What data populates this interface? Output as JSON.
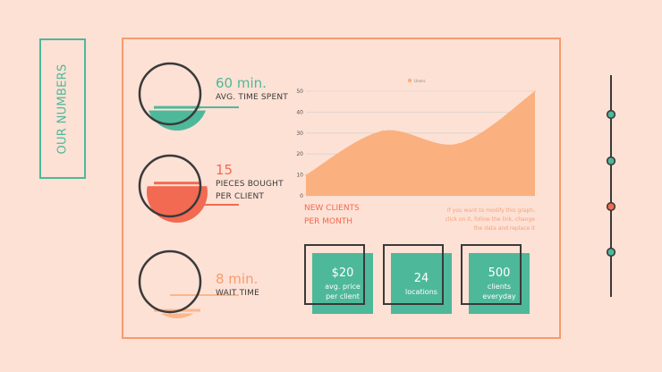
{
  "title": "OUR NUMBERS",
  "colors": {
    "background": "#fde1d5",
    "green": "#4eb89a",
    "coral": "#f26a52",
    "orange": "#f79b6d",
    "peach": "#fab78e",
    "dark": "#3a3a3a"
  },
  "stats": [
    {
      "value": "60 min.",
      "label_lines": [
        "AVG. TIME SPENT"
      ],
      "color": "#4eb89a",
      "fill_fraction": 0.33
    },
    {
      "value": "15",
      "label_lines": [
        "PIECES BOUGHT",
        "PER CLIENT"
      ],
      "color": "#f26a52",
      "fill_fraction": 0.6
    },
    {
      "value": "8 min.",
      "label_lines": [
        "WAIT TIME"
      ],
      "color": "#fab78e",
      "fill_fraction": 0.08
    }
  ],
  "chart_data": {
    "type": "area",
    "series": [
      {
        "name": "Users",
        "values": [
          10,
          31,
          25,
          50
        ]
      }
    ],
    "x": [
      0,
      1,
      2,
      3
    ],
    "ylim": [
      0,
      50
    ],
    "yticks": [
      0,
      10,
      20,
      30,
      40,
      50
    ],
    "grid": true,
    "legend": "top-center",
    "color": "#fab07f"
  },
  "chart_caption": [
    "NEW CLIENTS",
    "PER MONTH"
  ],
  "chart_note": [
    "If you want to modify this graph,",
    "click on it, follow the link, change",
    "the data and replace it"
  ],
  "cards": [
    {
      "number": "$20",
      "lines": [
        "avg. price",
        "per client"
      ]
    },
    {
      "number": "24",
      "lines": [
        "locations"
      ]
    },
    {
      "number": "500",
      "lines": [
        "clients",
        "everyday"
      ]
    }
  ],
  "timeline": {
    "dot_colors": [
      "#4eb89a",
      "#4eb89a",
      "#f26a52",
      "#4eb89a"
    ]
  }
}
